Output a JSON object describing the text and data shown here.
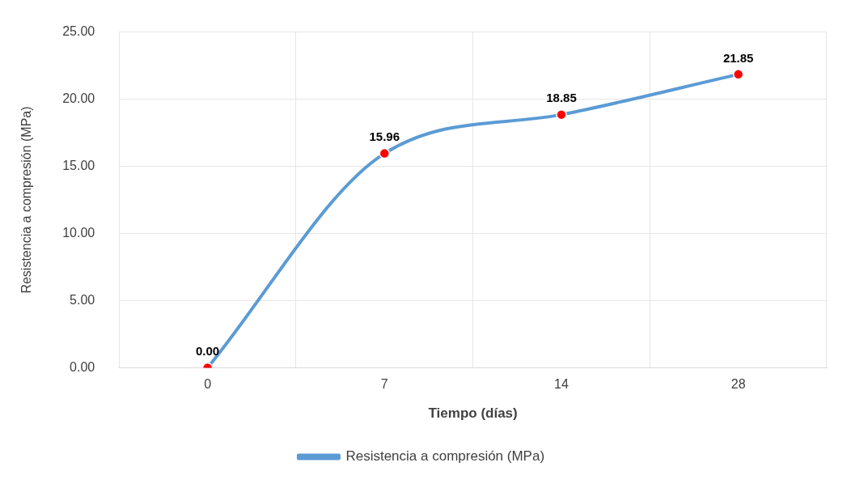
{
  "chart_data": {
    "type": "line",
    "xlabel": "Tiempo (días)",
    "ylabel": "Resistencia a compresión (MPa)",
    "categories": [
      "0",
      "7",
      "14",
      "28"
    ],
    "series": [
      {
        "name": "Resistencia a compresión (MPa)",
        "color": "#5b9bd5",
        "colors": [
          "#ff0000",
          "#ff0000",
          "#ff0000",
          "#ff0000"
        ],
        "values": [
          0.0,
          15.96,
          18.85,
          21.85
        ],
        "value_labels": [
          "0.00",
          "15.96",
          "18.85",
          "21.85"
        ]
      }
    ],
    "ylim": [
      0,
      25
    ],
    "yticks": [
      {
        "value": 0,
        "label": "0.00"
      },
      {
        "value": 5,
        "label": "5.00"
      },
      {
        "value": 10,
        "label": "10.00"
      },
      {
        "value": 15,
        "label": "15.00"
      },
      {
        "value": 20,
        "label": "20.00"
      },
      {
        "value": 25,
        "label": "25.00"
      }
    ],
    "grid": true,
    "legend": "bottom",
    "marker": "circle",
    "line_style": "solid"
  }
}
